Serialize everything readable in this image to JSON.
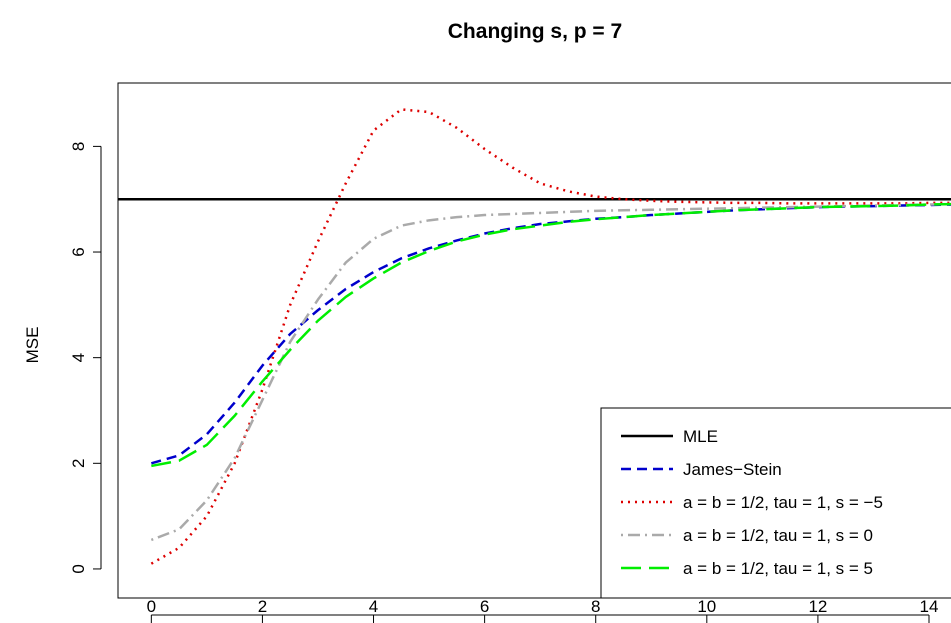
{
  "chart_data": {
    "type": "line",
    "title": "Changing s, p = 7",
    "xlabel": "",
    "ylabel": "MSE",
    "xlim": [
      -0.6,
      14.45
    ],
    "ylim": [
      -0.55,
      9.2
    ],
    "xticks": [
      0,
      2,
      4,
      6,
      8,
      10,
      12,
      14
    ],
    "xtick_labels": [
      "0",
      "2",
      "4",
      "6",
      "8",
      "10",
      "12",
      "14"
    ],
    "yticks": [
      0,
      2,
      4,
      6,
      8
    ],
    "ytick_labels": [
      "0",
      "2",
      "4",
      "6",
      "8"
    ],
    "grid": false,
    "legend_position": "bottom-right",
    "x": [
      0,
      0.5,
      1,
      1.5,
      2,
      2.5,
      3,
      3.5,
      4,
      4.5,
      5,
      5.5,
      6,
      6.5,
      7,
      7.5,
      8,
      8.5,
      9,
      9.5,
      10,
      10.5,
      11,
      11.5,
      12,
      12.5,
      13,
      13.5,
      14,
      14.5
    ],
    "series": [
      {
        "name": "MLE",
        "color": "#000000",
        "dash": "solid",
        "values": [
          7,
          7,
          7,
          7,
          7,
          7,
          7,
          7,
          7,
          7,
          7,
          7,
          7,
          7,
          7,
          7,
          7,
          7,
          7,
          7,
          7,
          7,
          7,
          7,
          7,
          7,
          7,
          7,
          7,
          7
        ]
      },
      {
        "name": "James−Stein",
        "color": "#0000cc",
        "dash": "dashed",
        "values": [
          2.0,
          2.15,
          2.55,
          3.15,
          3.85,
          4.45,
          4.9,
          5.3,
          5.62,
          5.88,
          6.07,
          6.22,
          6.35,
          6.45,
          6.53,
          6.58,
          6.63,
          6.66,
          6.7,
          6.73,
          6.76,
          6.79,
          6.81,
          6.83,
          6.85,
          6.86,
          6.87,
          6.88,
          6.89,
          6.9
        ]
      },
      {
        "name": "a = b = 1/2, tau = 1, s = −5",
        "color": "#dd0000",
        "dash": "dotted",
        "values": [
          0.1,
          0.4,
          1.0,
          2.0,
          3.4,
          5.0,
          6.2,
          7.3,
          8.3,
          8.7,
          8.65,
          8.35,
          7.95,
          7.6,
          7.3,
          7.15,
          7.05,
          7.0,
          6.97,
          6.95,
          6.94,
          6.93,
          6.93,
          6.92,
          6.92,
          6.92,
          6.92,
          6.92,
          6.93,
          6.93
        ]
      },
      {
        "name": "a = b = 1/2, tau = 1, s = 0",
        "color": "#aaaaaa",
        "dash": "dotdash",
        "values": [
          0.55,
          0.75,
          1.3,
          2.1,
          3.2,
          4.3,
          5.1,
          5.8,
          6.25,
          6.5,
          6.6,
          6.66,
          6.7,
          6.72,
          6.74,
          6.76,
          6.78,
          6.79,
          6.8,
          6.81,
          6.82,
          6.83,
          6.84,
          6.85,
          6.86,
          6.87,
          6.88,
          6.89,
          6.9,
          6.91
        ]
      },
      {
        "name": "a = b = 1/2, tau = 1, s = 5",
        "color": "#00ee00",
        "dash": "longdash",
        "values": [
          1.95,
          2.05,
          2.35,
          2.9,
          3.55,
          4.15,
          4.7,
          5.15,
          5.5,
          5.8,
          6.02,
          6.2,
          6.33,
          6.43,
          6.5,
          6.57,
          6.62,
          6.66,
          6.7,
          6.73,
          6.76,
          6.79,
          6.81,
          6.83,
          6.85,
          6.86,
          6.87,
          6.88,
          6.9,
          6.91
        ]
      }
    ]
  }
}
